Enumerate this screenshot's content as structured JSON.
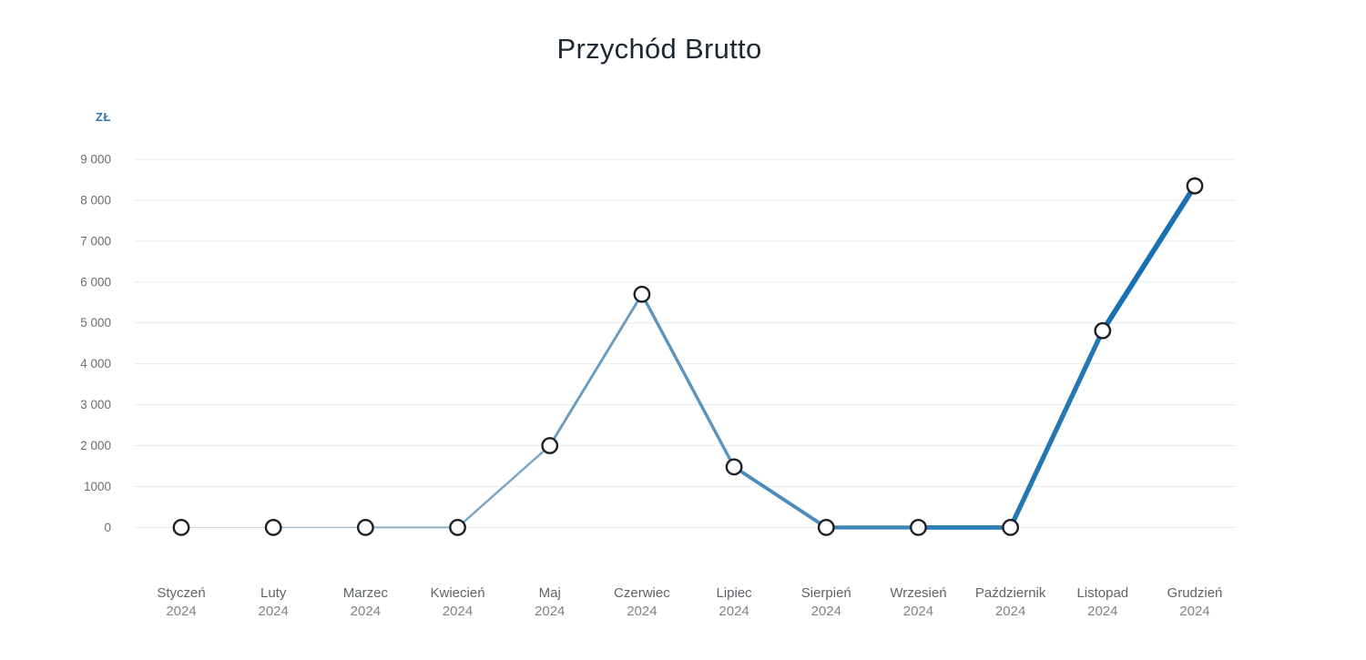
{
  "page": {
    "background": "#ffffff"
  },
  "chart_data": {
    "type": "line",
    "title": "Przychód Brutto",
    "y_axis_unit": "ZŁ",
    "year": "2024",
    "categories": [
      "Styczeń",
      "Luty",
      "Marzec",
      "Kwiecień",
      "Maj",
      "Czerwiec",
      "Lipiec",
      "Sierpień",
      "Wrzesień",
      "Październik",
      "Listopad",
      "Grudzień"
    ],
    "values": [
      0,
      0,
      0,
      0,
      2000,
      5700,
      1480,
      0,
      0,
      0,
      4810,
      8350
    ],
    "y_tick_labels": [
      "9 000",
      "8 000",
      "7 000",
      "6 000",
      "5 000",
      "4 000",
      "3 000",
      "2 000",
      "1000",
      "0"
    ],
    "ylim": [
      0,
      9000
    ],
    "grid": true,
    "legend": "none",
    "style_note": "single series; line grows thicker and more saturated blue from January to December; hollow circle markers",
    "colors": {
      "line_gradient_start": "#d3d7db",
      "line_gradient_end": "#1a71b1",
      "marker_fill": "#ffffff",
      "marker_stroke": "#1d2126",
      "gridline": "#e8eaec",
      "unit_label": "#2378b4",
      "title": "#1e2833",
      "y_tick_text": "#6a6d70",
      "x_month_text": "#5f6468",
      "x_year_text": "#7f8487"
    }
  }
}
